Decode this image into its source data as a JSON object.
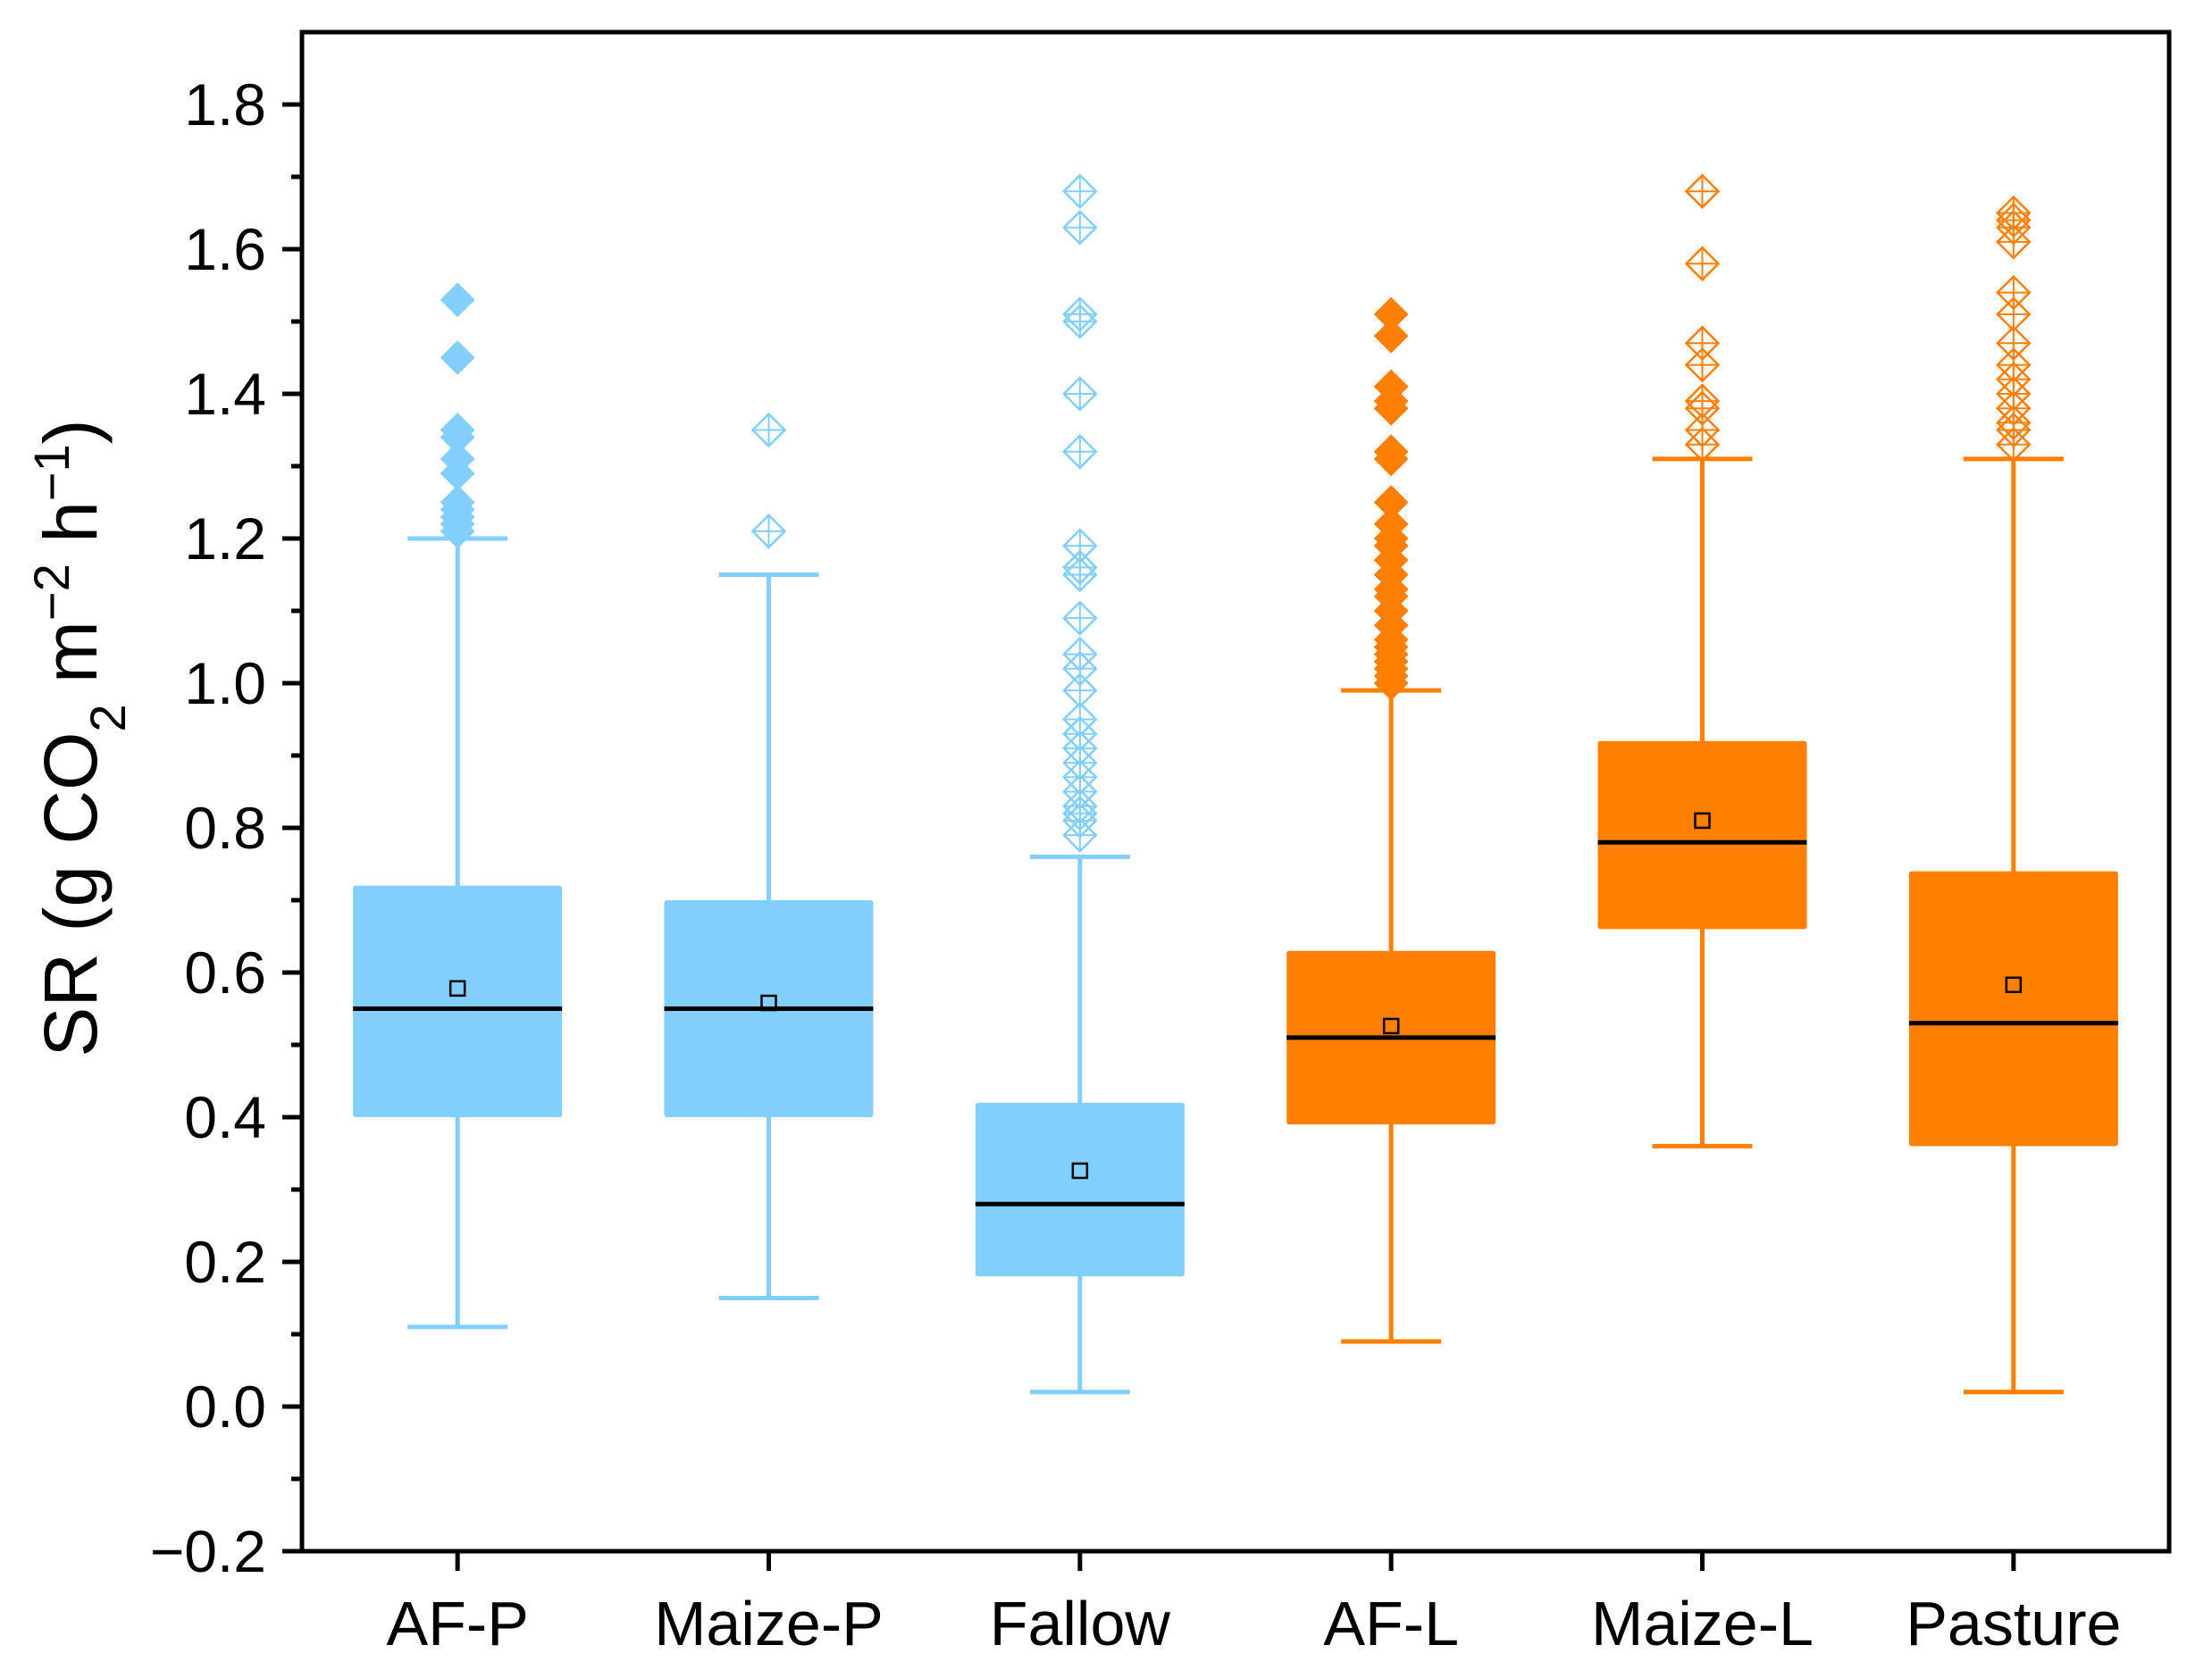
{
  "chart_data": {
    "type": "box",
    "title": "",
    "xlabel": "",
    "ylabel": {
      "parts": [
        {
          "text": "SR (g CO",
          "shift": "none"
        },
        {
          "text": "2",
          "shift": "sub"
        },
        {
          "text": " m",
          "shift": "none"
        },
        {
          "text": "−2",
          "shift": "super"
        },
        {
          "text": " h",
          "shift": "none"
        },
        {
          "text": "−1",
          "shift": "super"
        },
        {
          "text": ")",
          "shift": "none"
        }
      ]
    },
    "ylim": [
      -0.2,
      1.9
    ],
    "yticks": [
      -0.2,
      0.0,
      0.2,
      0.4,
      0.6,
      0.8,
      1.0,
      1.2,
      1.4,
      1.6,
      1.8
    ],
    "ytick_labels": [
      "−0.2",
      "0.0",
      "0.2",
      "0.4",
      "0.6",
      "0.8",
      "1.0",
      "1.2",
      "1.4",
      "1.6",
      "1.8"
    ],
    "colors": {
      "blue": "#82cffd",
      "orange": "#ff7f00",
      "median": "#000000",
      "axis": "#000000"
    },
    "categories": [
      "AF-P",
      "Maize-P",
      "Fallow",
      "AF-L",
      "Maize-L",
      "Pasture"
    ],
    "boxes": [
      {
        "name": "AF-P",
        "color": "blue",
        "outlier_style": "filled",
        "whisker_low": 0.11,
        "q1": 0.4,
        "median": 0.55,
        "q3": 0.72,
        "whisker_high": 1.2,
        "mean": 0.578,
        "outliers": [
          1.21,
          1.22,
          1.23,
          1.24,
          1.25,
          1.29,
          1.31,
          1.34,
          1.35,
          1.45,
          1.53
        ]
      },
      {
        "name": "Maize-P",
        "color": "blue",
        "outlier_style": "open",
        "whisker_low": 0.15,
        "q1": 0.4,
        "median": 0.55,
        "q3": 0.7,
        "whisker_high": 1.15,
        "mean": 0.558,
        "outliers": [
          1.21,
          1.35
        ]
      },
      {
        "name": "Fallow",
        "color": "blue",
        "outlier_style": "open",
        "whisker_low": 0.02,
        "q1": 0.18,
        "median": 0.28,
        "q3": 0.42,
        "whisker_high": 0.76,
        "mean": 0.326,
        "outliers": [
          0.79,
          0.81,
          0.82,
          0.83,
          0.85,
          0.87,
          0.89,
          0.91,
          0.93,
          0.95,
          0.99,
          1.02,
          1.04,
          1.09,
          1.15,
          1.16,
          1.19,
          1.32,
          1.4,
          1.5,
          1.51,
          1.63,
          1.68
        ]
      },
      {
        "name": "AF-L",
        "color": "orange",
        "outlier_style": "filled",
        "whisker_low": 0.09,
        "q1": 0.39,
        "median": 0.51,
        "q3": 0.63,
        "whisker_high": 0.99,
        "mean": 0.526,
        "outliers": [
          1.0,
          1.01,
          1.02,
          1.03,
          1.04,
          1.05,
          1.06,
          1.08,
          1.1,
          1.12,
          1.13,
          1.15,
          1.17,
          1.19,
          1.2,
          1.22,
          1.25,
          1.31,
          1.32,
          1.38,
          1.39,
          1.41,
          1.48,
          1.51
        ]
      },
      {
        "name": "Maize-L",
        "color": "orange",
        "outlier_style": "open",
        "whisker_low": 0.36,
        "q1": 0.66,
        "median": 0.78,
        "q3": 0.92,
        "whisker_high": 1.31,
        "mean": 0.81,
        "outliers": [
          1.33,
          1.35,
          1.38,
          1.39,
          1.44,
          1.47,
          1.58,
          1.68
        ]
      },
      {
        "name": "Pasture",
        "color": "orange",
        "outlier_style": "open",
        "whisker_low": 0.02,
        "q1": 0.36,
        "median": 0.53,
        "q3": 0.74,
        "whisker_high": 1.31,
        "mean": 0.583,
        "outliers": [
          1.33,
          1.35,
          1.36,
          1.38,
          1.4,
          1.42,
          1.44,
          1.47,
          1.51,
          1.54,
          1.61,
          1.63,
          1.64,
          1.65
        ]
      }
    ]
  }
}
